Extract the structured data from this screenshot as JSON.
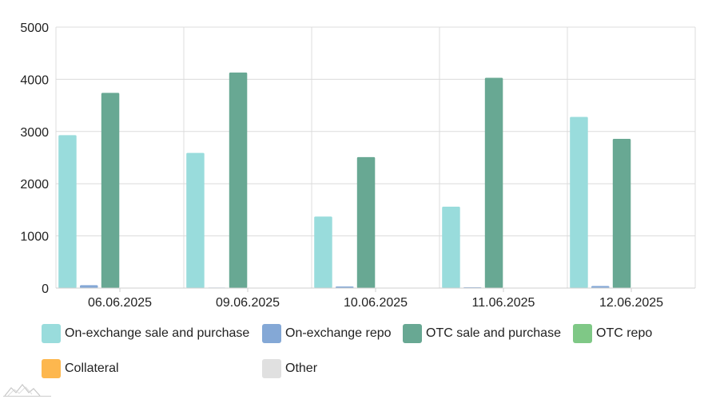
{
  "chart_data": {
    "type": "bar",
    "categories": [
      "06.06.2025",
      "09.06.2025",
      "10.06.2025",
      "11.06.2025",
      "12.06.2025"
    ],
    "ylim": [
      0,
      5000
    ],
    "yticks": [
      0,
      1000,
      2000,
      3000,
      4000,
      5000
    ],
    "grid": true,
    "legend_position": "bottom",
    "series": [
      {
        "name": "On-exchange sale and purchase",
        "color": "#99dcdc",
        "values": [
          2930,
          2590,
          1370,
          1560,
          3280
        ]
      },
      {
        "name": "On-exchange repo",
        "color": "#84a8d6",
        "values": [
          55,
          10,
          30,
          15,
          40
        ]
      },
      {
        "name": "OTC sale and purchase",
        "color": "#68a893",
        "values": [
          3740,
          4130,
          2510,
          4030,
          2860
        ]
      },
      {
        "name": "OTC repo",
        "color": "#7fc886",
        "values": [
          5,
          5,
          5,
          5,
          5
        ]
      },
      {
        "name": "Collateral",
        "color": "#fdb74e",
        "values": [
          3,
          3,
          3,
          3,
          3
        ]
      },
      {
        "name": "Other",
        "color": "#e0e0e0",
        "values": [
          2,
          2,
          2,
          2,
          2
        ]
      }
    ]
  }
}
